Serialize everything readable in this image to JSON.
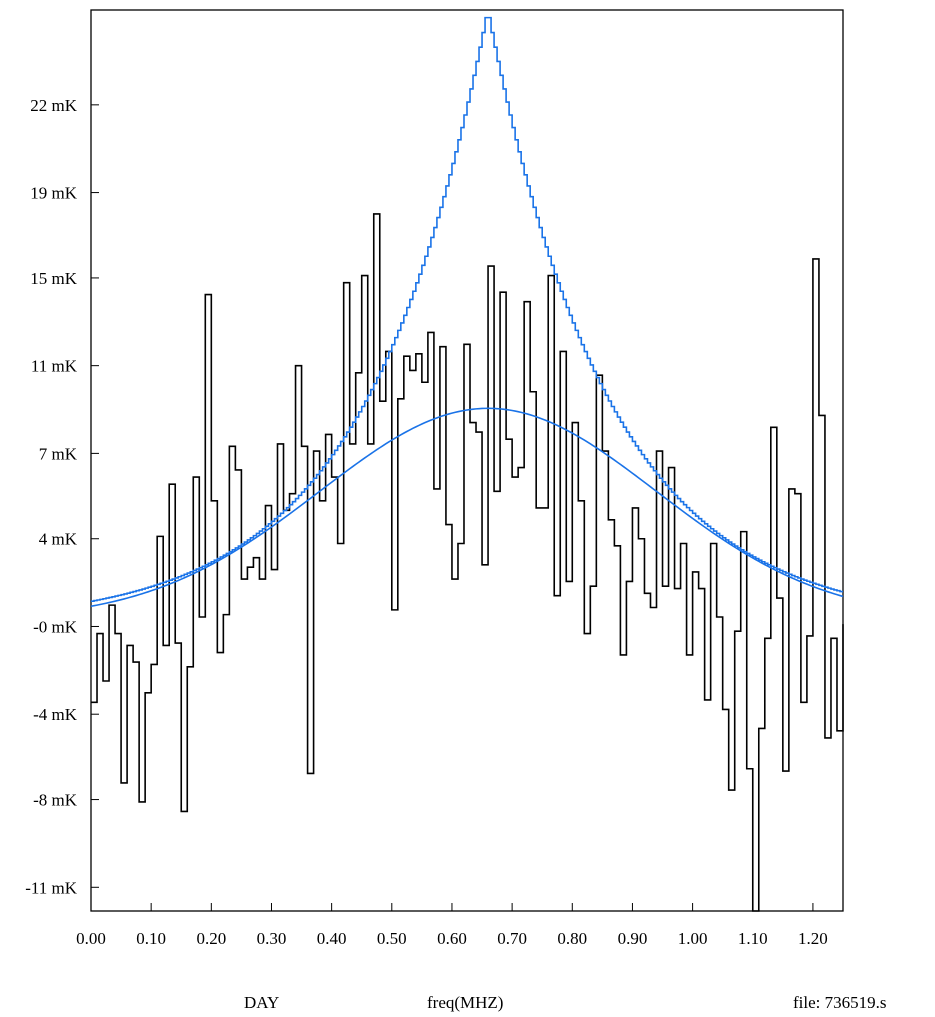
{
  "footer": {
    "left_label": "DAY",
    "center_label": "freq(MHZ)",
    "right_label": "file: 736519.s"
  },
  "chart_data": {
    "type": "line",
    "title": "",
    "xlabel": "freq(MHZ)",
    "ylabel": "",
    "xlim": [
      0.0,
      1.25
    ],
    "ylim": [
      -12,
      26
    ],
    "grid": false,
    "x_ticks": [
      "0.00",
      "0.10",
      "0.20",
      "0.30",
      "0.40",
      "0.50",
      "0.60",
      "0.70",
      "0.80",
      "0.90",
      "1.00",
      "1.10",
      "1.20"
    ],
    "x_tick_values": [
      0.0,
      0.1,
      0.2,
      0.3,
      0.4,
      0.5,
      0.6,
      0.7,
      0.8,
      0.9,
      1.0,
      1.1,
      1.2
    ],
    "y_ticks": [
      "-11 mK",
      "-8 mK",
      "-4 mK",
      "-0 mK",
      "4 mK",
      "7 mK",
      "11 mK",
      "15 mK",
      "19 mK",
      "22 mK"
    ],
    "y_tick_values": [
      -11.0,
      -7.3,
      -3.7,
      0.0,
      3.7,
      7.3,
      11.0,
      14.7,
      18.3,
      22.0
    ],
    "colors": {
      "data": "#000000",
      "models": "#1a73e8"
    },
    "series": [
      {
        "style": "step",
        "color": "#000000",
        "x_start": 0.0,
        "x_step": 0.01,
        "values": [
          -3.2,
          -0.3,
          -2.3,
          0.9,
          -0.3,
          -6.6,
          -0.8,
          -1.5,
          -7.4,
          -2.8,
          -1.6,
          3.8,
          -0.8,
          6.0,
          -0.7,
          -7.8,
          -1.7,
          6.3,
          0.4,
          14.0,
          5.3,
          -1.1,
          0.5,
          7.6,
          6.6,
          2.0,
          2.5,
          2.9,
          2.0,
          5.1,
          2.4,
          7.7,
          4.9,
          5.6,
          11.0,
          7.6,
          -6.2,
          7.4,
          5.3,
          8.1,
          6.3,
          3.5,
          14.5,
          7.7,
          10.7,
          14.8,
          7.7,
          17.4,
          9.5,
          11.6,
          0.7,
          9.6,
          11.4,
          10.8,
          11.5,
          10.3,
          12.4,
          5.8,
          11.8,
          4.3,
          2.0,
          3.5,
          11.9,
          8.6,
          8.2,
          2.6,
          15.2,
          5.7,
          14.1,
          7.9,
          6.3,
          6.7,
          13.7,
          9.9,
          5.0,
          5.0,
          14.8,
          1.3,
          11.6,
          1.9,
          8.6,
          5.3,
          -0.3,
          1.7,
          10.6,
          7.4,
          4.5,
          3.4,
          -1.2,
          1.9,
          5.0,
          3.7,
          1.4,
          0.8,
          7.4,
          1.7,
          6.7,
          1.6,
          3.5,
          -1.2,
          2.3,
          1.6,
          -3.1,
          3.5,
          0.4,
          -3.5,
          -6.9,
          -0.2,
          4.0,
          -6.0,
          -12.5,
          -4.3,
          -0.5,
          8.4,
          1.2,
          -6.1,
          5.8,
          5.6,
          -3.2,
          -0.4,
          15.5,
          8.9,
          -4.7,
          -0.5,
          -4.4,
          0.1
        ]
      },
      {
        "style": "smooth",
        "color": "#1a73e8",
        "center": 0.66,
        "peak": 9.2,
        "width": 0.28,
        "baseline": 0.3
      },
      {
        "style": "step",
        "color": "#1a73e8",
        "x_start": 0.0,
        "x_step": 0.005,
        "center": 0.66,
        "peak": 26.0,
        "scale": 0.2,
        "baseline": 0.1
      }
    ]
  }
}
